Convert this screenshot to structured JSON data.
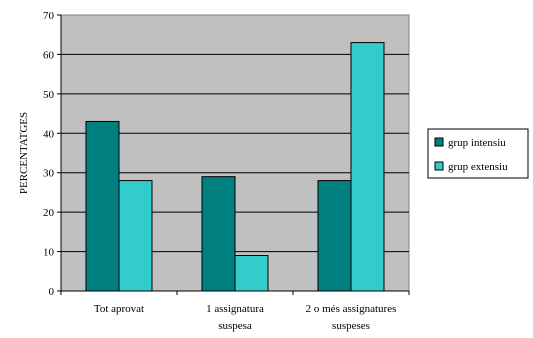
{
  "chart_data": {
    "type": "bar",
    "categories": [
      [
        "Tot aprovat"
      ],
      [
        "1 assignatura",
        "suspesa"
      ],
      [
        "2 o més assignatures",
        "suspeses"
      ]
    ],
    "series": [
      {
        "name": "grup intensiu",
        "values": [
          43,
          29,
          28
        ],
        "color": "#008080"
      },
      {
        "name": "grup extensiu",
        "values": [
          28,
          9,
          63
        ],
        "color": "#33CCCC"
      }
    ],
    "ylabel": "PERCENTATGES",
    "xlabel": "",
    "ylim": [
      0,
      70
    ],
    "yticks": [
      0,
      10,
      20,
      30,
      40,
      50,
      60,
      70
    ],
    "grid": true,
    "plot_background": "#C0C0C0",
    "legend_position": "right"
  }
}
